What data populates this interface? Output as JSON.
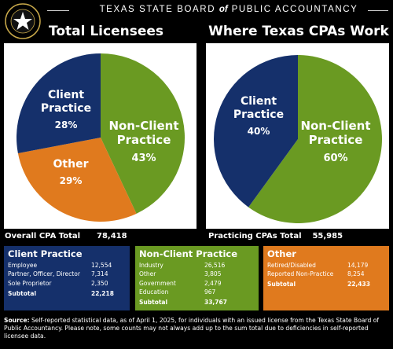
{
  "header": {
    "title_pre": "TEXAS STATE BOARD",
    "title_of": "of",
    "title_post": "PUBLIC ACCOUNTANCY",
    "seal_text_top": "TEXAS STATE",
    "seal_text_bottom": "BOARD OF PUBLIC ACCOUNTANCY"
  },
  "chart_data": [
    {
      "type": "pie",
      "title": "Total Licensees",
      "slices": [
        {
          "label": "Non-Client Practice",
          "value": 43,
          "display": "43%",
          "color": "#6a9a22"
        },
        {
          "label": "Other",
          "value": 29,
          "display": "29%",
          "color": "#e07a1e"
        },
        {
          "label": "Client Practice",
          "value": 28,
          "display": "28%",
          "color": "#15306b"
        }
      ]
    },
    {
      "type": "pie",
      "title": "Where Texas CPAs Work",
      "slices": [
        {
          "label": "Non-Client Practice",
          "value": 60,
          "display": "60%",
          "color": "#6a9a22"
        },
        {
          "label": "Client Practice",
          "value": 40,
          "display": "40%",
          "color": "#15306b"
        }
      ]
    }
  ],
  "totals": {
    "left_label": "Overall CPA Total",
    "left_value": "78,418",
    "right_label": "Practicing CPAs Total",
    "right_value": "55,985"
  },
  "boxes": [
    {
      "title": "Client Practice",
      "color": "#15306b",
      "rows": [
        {
          "label": "Employee",
          "value": "12,554"
        },
        {
          "label": "Partner, Officer, Director",
          "value": "7,314"
        },
        {
          "label": "Sole Proprietor",
          "value": "2,350"
        }
      ],
      "subtotal_label": "Subtotal",
      "subtotal_value": "22,218"
    },
    {
      "title": "Non-Client Practice",
      "color": "#6a9a22",
      "rows": [
        {
          "label": "Industry",
          "value": "26,516"
        },
        {
          "label": "Other",
          "value": "3,805"
        },
        {
          "label": "Government",
          "value": "2,479"
        },
        {
          "label": "Education",
          "value": "967"
        }
      ],
      "subtotal_label": "Subtotal",
      "subtotal_value": "33,767"
    },
    {
      "title": "Other",
      "color": "#e07a1e",
      "rows": [
        {
          "label": "Retired/Disabled",
          "value": "14,179"
        },
        {
          "label": "Reported Non-Practice",
          "value": "8,254"
        }
      ],
      "subtotal_label": "Subtotal",
      "subtotal_value": "22,433"
    }
  ],
  "source": {
    "label": "Source:",
    "text": "Self-reported statistical data, as of April 1, 2025, for individuals with an issued license from the Texas State Board of Public Accountancy. Please note, some counts may not always add up to the sum total due to deficiencies in self-reported licensee data."
  }
}
